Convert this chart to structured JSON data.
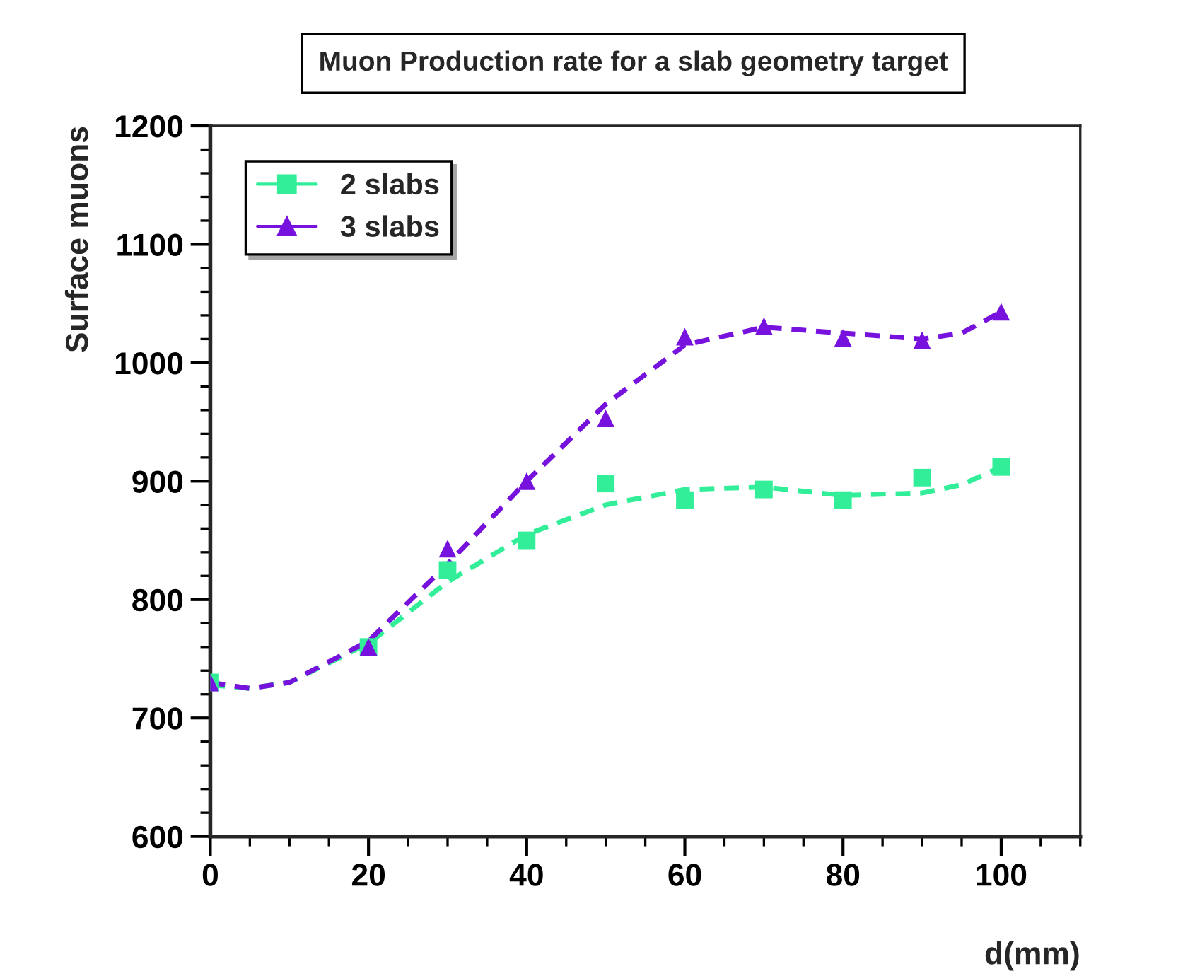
{
  "chart_data": {
    "type": "scatter",
    "title": "Muon Production rate for a slab geometry target",
    "xlabel": "d(mm)",
    "ylabel": "Surface muons",
    "x": [
      0,
      20,
      30,
      40,
      50,
      60,
      70,
      80,
      90,
      100
    ],
    "series": [
      {
        "name": "2 slabs",
        "color": "#33ee99",
        "marker": "square",
        "values": [
          730,
          760,
          825,
          850,
          898,
          884,
          893,
          884,
          903,
          912
        ]
      },
      {
        "name": "3 slabs",
        "color": "#7711dd",
        "marker": "triangle",
        "values": [
          730,
          760,
          843,
          900,
          953,
          1022,
          1031,
          1021,
          1019,
          1043
        ]
      },
      {
        "type": "line",
        "color": "#33ee99",
        "line_style": "dashed",
        "x": [
          0,
          5,
          10,
          20,
          30,
          40,
          50,
          60,
          70,
          80,
          90,
          95,
          100
        ],
        "values": [
          728,
          725,
          730,
          763,
          815,
          855,
          880,
          893,
          895,
          888,
          890,
          897,
          912
        ]
      },
      {
        "type": "line",
        "color": "#7711dd",
        "line_style": "dashed",
        "x": [
          0,
          5,
          10,
          20,
          30,
          40,
          50,
          60,
          70,
          80,
          90,
          95,
          100
        ],
        "values": [
          730,
          725,
          730,
          765,
          830,
          900,
          965,
          1015,
          1030,
          1025,
          1020,
          1025,
          1043
        ]
      }
    ],
    "xlim": [
      0,
      110
    ],
    "xticks": [
      0,
      20,
      40,
      60,
      80,
      100
    ],
    "ylim": [
      600,
      1200
    ],
    "yticks": [
      600,
      700,
      800,
      900,
      1000,
      1100,
      1200
    ],
    "legend": "top left",
    "grid": false
  }
}
